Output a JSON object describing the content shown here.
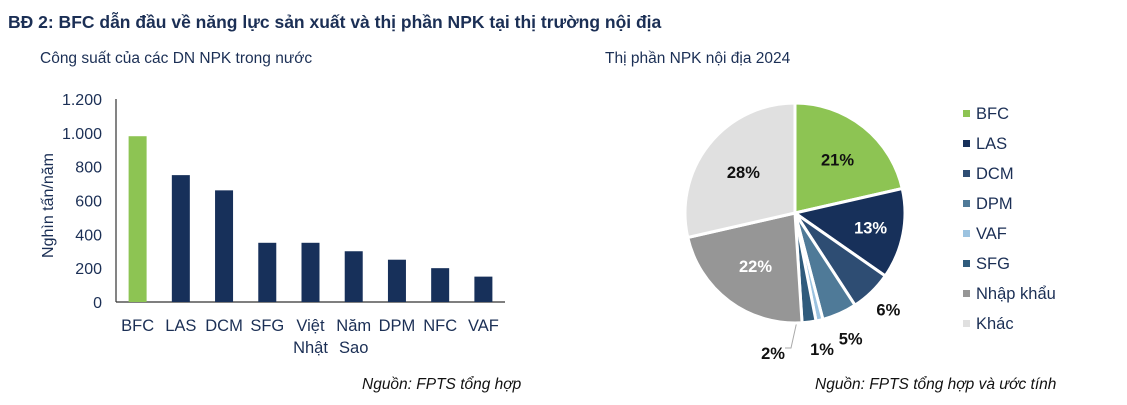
{
  "title": "BĐ 2: BFC dẫn đầu về năng lực sản xuất và thị phần NPK tại thị trường nội địa",
  "chart_data": [
    {
      "type": "bar",
      "title": "Công suất của các DN NPK  trong nước",
      "xlabel": "",
      "ylabel": "Nghìn tấn/năm",
      "categories": [
        "BFC",
        "LAS",
        "DCM",
        "SFG",
        "Việt Nhật",
        "Năm Sao",
        "DPM",
        "NFC",
        "VAF"
      ],
      "values": [
        980,
        750,
        660,
        350,
        350,
        300,
        250,
        200,
        150
      ],
      "colors": [
        "#8dc453",
        "#17305a",
        "#17305a",
        "#17305a",
        "#17305a",
        "#17305a",
        "#17305a",
        "#17305a",
        "#17305a"
      ],
      "ylim": [
        0,
        1200
      ],
      "yticks": [
        0,
        200,
        400,
        600,
        800,
        1000,
        1200
      ],
      "ytick_labels": [
        "0",
        "200",
        "400",
        "600",
        "800",
        "1.000",
        "1.200"
      ],
      "grid": false,
      "source": "Nguồn: FPTS tổng hợp"
    },
    {
      "type": "pie",
      "title": "Thị phần NPK nội địa 2024",
      "labels": [
        "BFC",
        "LAS",
        "DCM",
        "DPM",
        "VAF",
        "SFG",
        "Nhập khẩu",
        "Khác"
      ],
      "values": [
        21,
        13,
        6,
        5,
        1,
        2,
        22,
        28
      ],
      "data_labels": [
        "21%",
        "13%",
        "6%",
        "5%",
        "1%",
        "2%",
        "22%",
        "28%"
      ],
      "colors": [
        "#8dc453",
        "#17305a",
        "#2e4d73",
        "#4f7a98",
        "#9cc3e0",
        "#2f5b7c",
        "#969696",
        "#e0e0e0"
      ],
      "legend_position": "right",
      "source": "Nguồn: FPTS tổng hợp và ước tính"
    }
  ]
}
